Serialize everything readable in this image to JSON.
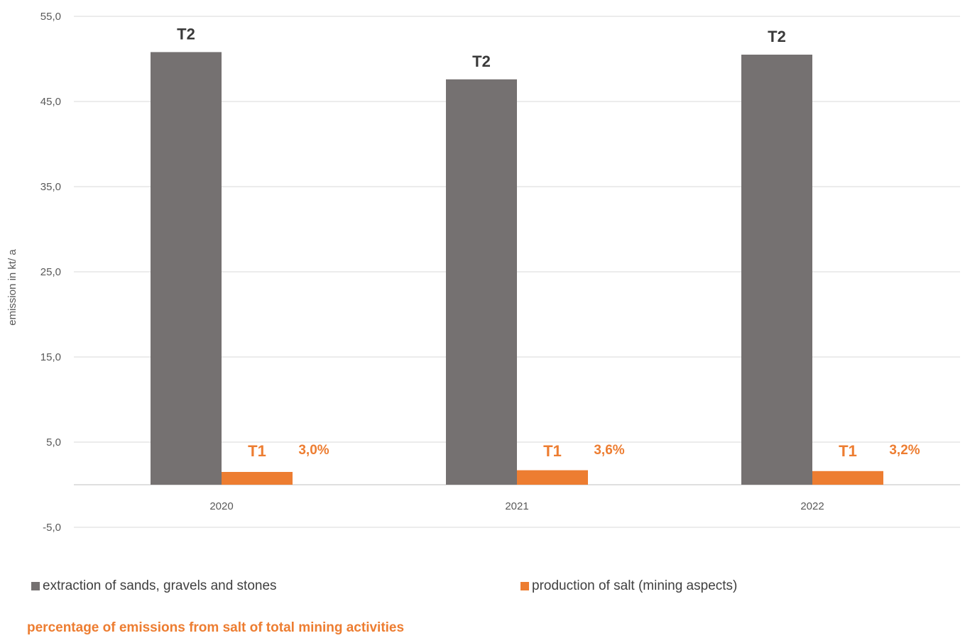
{
  "chart_data": {
    "type": "bar",
    "categories": [
      "2020",
      "2021",
      "2022"
    ],
    "series": [
      {
        "name": "extraction of sands, gravels and stones",
        "color": "#757171",
        "values": [
          50.8,
          47.6,
          50.5
        ],
        "tier_labels": [
          "T2",
          "T2",
          "T2"
        ]
      },
      {
        "name": "production of salt (mining aspects)",
        "color": "#ed7d31",
        "values": [
          1.5,
          1.7,
          1.6
        ],
        "tier_labels": [
          "T1",
          "T1",
          "T1"
        ]
      }
    ],
    "percentages": [
      "3,0%",
      "3,6%",
      "3,2%"
    ],
    "ylabel": "emission in kt/ a",
    "xlabel": "",
    "ylim": [
      -5,
      55
    ],
    "yticks": [
      "55,0",
      "45,0",
      "35,0",
      "25,0",
      "15,0",
      "5,0",
      "-5,0"
    ],
    "ytick_values": [
      55,
      45,
      35,
      25,
      15,
      5,
      -5
    ],
    "grid": true,
    "legend_position": "bottom",
    "note": "percentage of emissions from salt of total mining activities"
  }
}
